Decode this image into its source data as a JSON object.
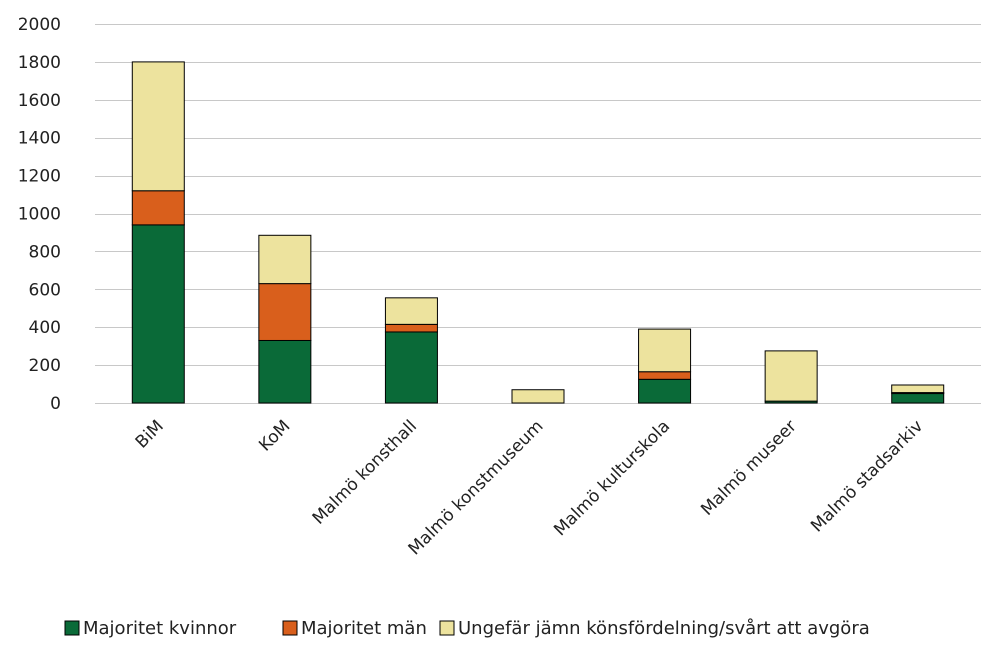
{
  "chart_data": {
    "type": "bar",
    "stacked": true,
    "title": "",
    "xlabel": "",
    "ylabel": "",
    "ylim": [
      0,
      2000
    ],
    "yticks": [
      0,
      200,
      400,
      600,
      800,
      1000,
      1200,
      1400,
      1600,
      1800,
      2000
    ],
    "ytick_labels": [
      "0",
      "200",
      "400",
      "600",
      "800",
      "1000",
      "1200",
      "1400",
      "1600",
      "1800",
      "2000"
    ],
    "grid": true,
    "legend_position": "bottom",
    "categories": [
      "BiM",
      "KoM",
      "Malmö konsthall",
      "Malmö konstmuseum",
      "Malmö kulturskola",
      "Malmö museer",
      "Malmö stadsarkiv"
    ],
    "series": [
      {
        "name": "Majoritet kvinnor",
        "color": "#0a6a38",
        "values": [
          940,
          330,
          375,
          0,
          125,
          10,
          50
        ]
      },
      {
        "name": "Majoritet män",
        "color": "#d95f1c",
        "values": [
          180,
          300,
          40,
          0,
          40,
          0,
          5
        ]
      },
      {
        "name": "Ungefär jämn könsfördelning/svårt att avgöra",
        "color": "#ede39e",
        "values": [
          680,
          255,
          140,
          70,
          225,
          265,
          40
        ]
      }
    ]
  }
}
